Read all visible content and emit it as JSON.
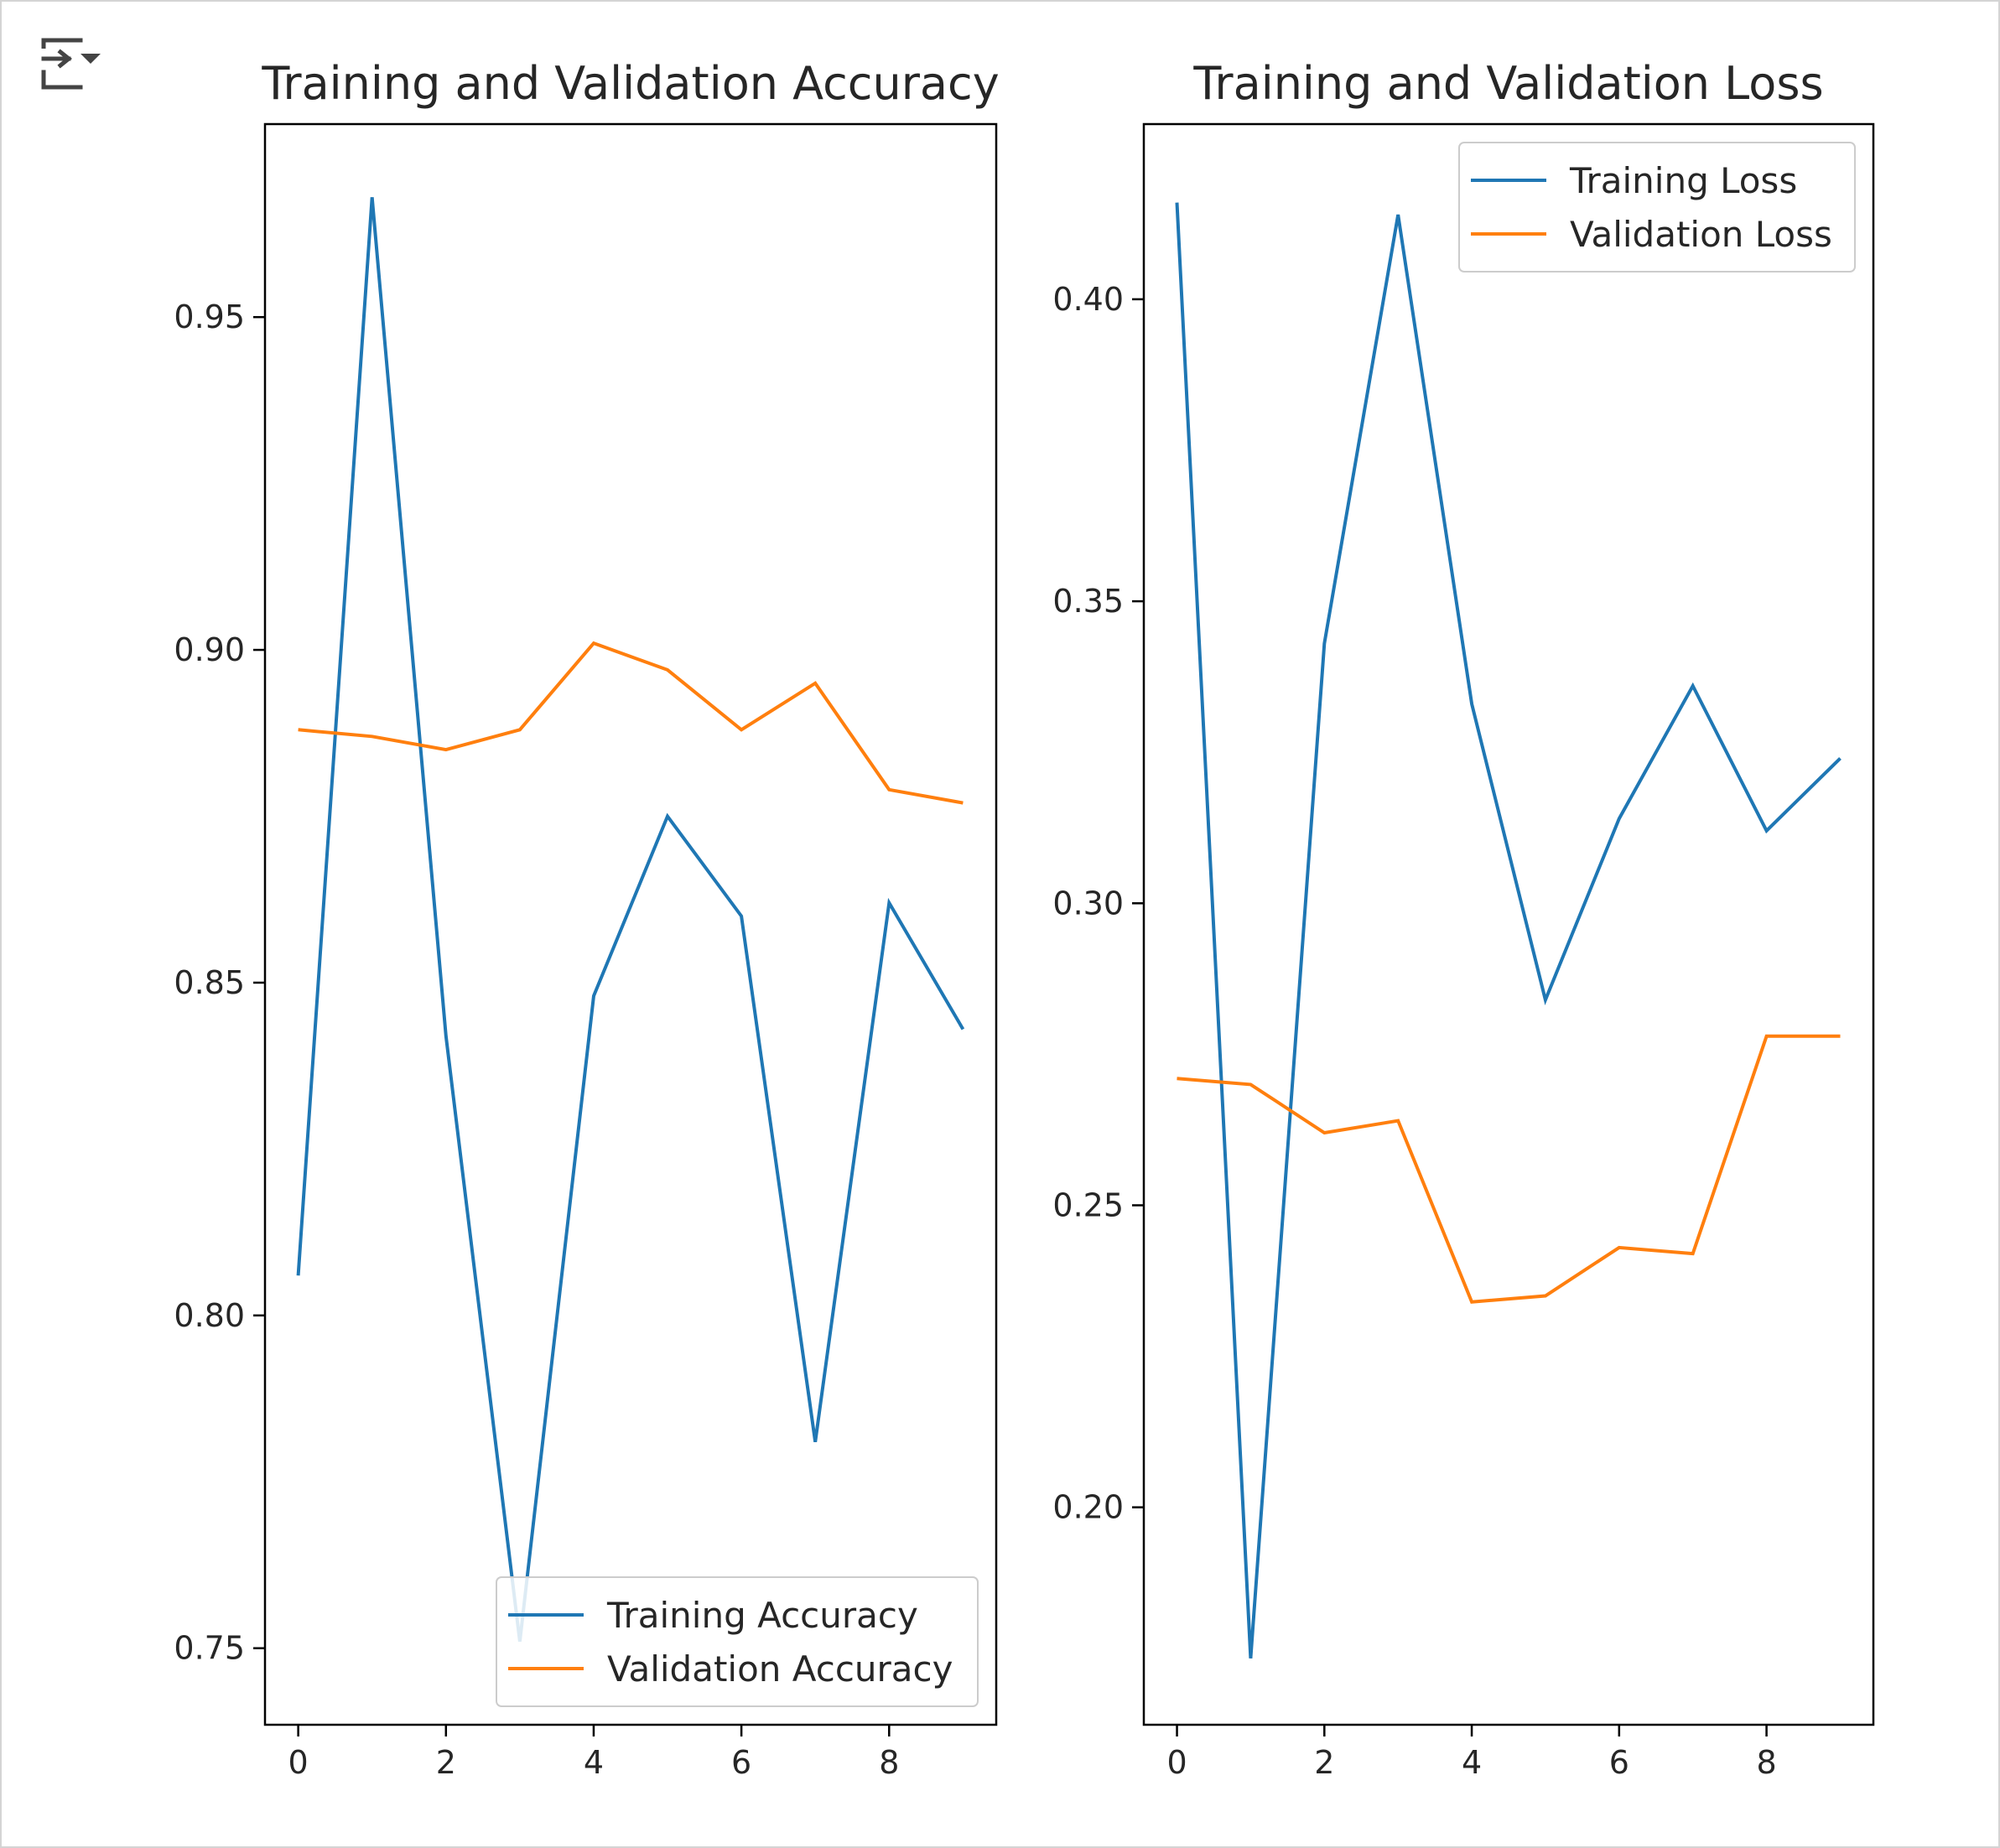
{
  "colors": {
    "training": "#1f77b4",
    "validation": "#ff7f0e",
    "axis": "#000000",
    "text": "#262626"
  },
  "icons": {
    "output_toggle": "output-collapse-icon"
  },
  "chart_data": [
    {
      "type": "line",
      "title": "Training and Validation Accuracy",
      "xlabel": "",
      "ylabel": "",
      "x": [
        0,
        1,
        2,
        3,
        4,
        5,
        6,
        7,
        8,
        9
      ],
      "xlim": [
        -0.45,
        9.45
      ],
      "ylim": [
        0.7385,
        0.979
      ],
      "xticks": [
        "0",
        "2",
        "4",
        "6",
        "8"
      ],
      "yticks": [
        "0.75",
        "0.80",
        "0.85",
        "0.90",
        "0.95"
      ],
      "grid": false,
      "legend_position": "lower right",
      "series": [
        {
          "name": "Training Accuracy",
          "color": "#1f77b4",
          "values": [
            0.806,
            0.968,
            0.842,
            0.751,
            0.848,
            0.875,
            0.86,
            0.781,
            0.862,
            0.843
          ]
        },
        {
          "name": "Validation Accuracy",
          "color": "#ff7f0e",
          "values": [
            0.888,
            0.887,
            0.885,
            0.888,
            0.901,
            0.897,
            0.888,
            0.895,
            0.879,
            0.877
          ]
        }
      ]
    },
    {
      "type": "line",
      "title": "Training and Validation Loss",
      "xlabel": "",
      "ylabel": "",
      "x": [
        0,
        1,
        2,
        3,
        4,
        5,
        6,
        7,
        8,
        9
      ],
      "xlim": [
        -0.45,
        9.45
      ],
      "ylim": [
        0.164,
        0.429
      ],
      "xticks": [
        "0",
        "2",
        "4",
        "6",
        "8"
      ],
      "yticks": [
        "0.20",
        "0.25",
        "0.30",
        "0.35",
        "0.40"
      ],
      "grid": false,
      "legend_position": "upper right",
      "series": [
        {
          "name": "Training Loss",
          "color": "#1f77b4",
          "values": [
            0.416,
            0.175,
            0.343,
            0.414,
            0.333,
            0.284,
            0.314,
            0.336,
            0.312,
            0.324
          ]
        },
        {
          "name": "Validation Loss",
          "color": "#ff7f0e",
          "values": [
            0.271,
            0.27,
            0.262,
            0.264,
            0.234,
            0.235,
            0.243,
            0.242,
            0.278,
            0.278
          ]
        }
      ]
    }
  ]
}
